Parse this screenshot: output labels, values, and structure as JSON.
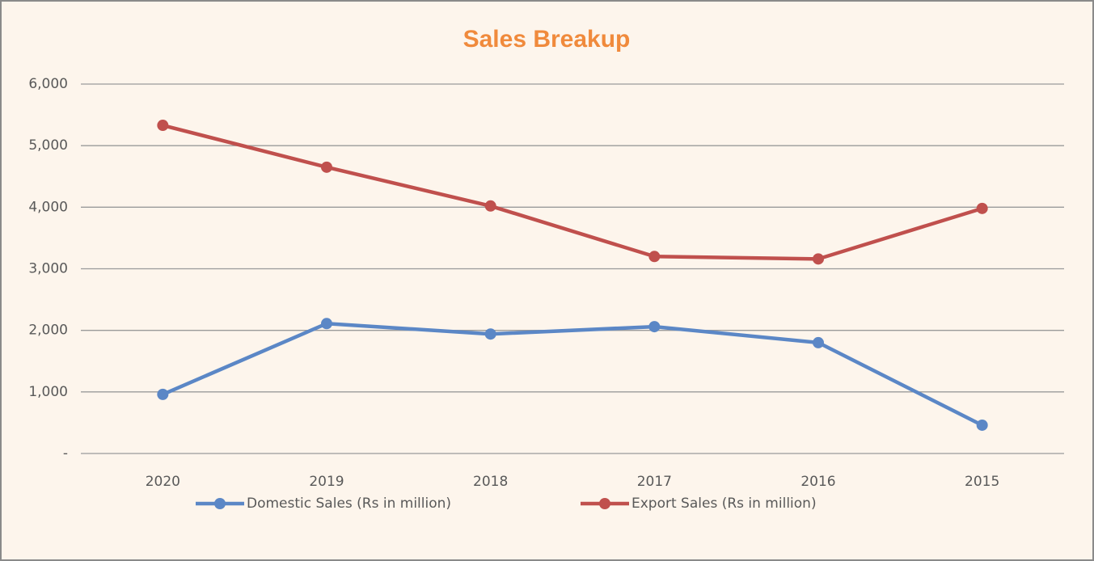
{
  "chart_data": {
    "type": "line",
    "title": "Sales Breakup",
    "categories": [
      "2020",
      "2019",
      "2018",
      "2017",
      "2016",
      "2015"
    ],
    "series": [
      {
        "name": "Domestic Sales (Rs in million)",
        "color": "#5b87c6",
        "values": [
          960,
          2110,
          1940,
          2060,
          1800,
          460
        ]
      },
      {
        "name": "Export Sales (Rs in million)",
        "color": "#c0504d",
        "values": [
          5330,
          4650,
          4020,
          3200,
          3160,
          3980
        ]
      }
    ],
    "ylim": [
      0,
      6000
    ],
    "yticks": [
      {
        "value": 0,
        "label": "-"
      },
      {
        "value": 1000,
        "label": "1,000"
      },
      {
        "value": 2000,
        "label": "2,000"
      },
      {
        "value": 3000,
        "label": "3,000"
      },
      {
        "value": 4000,
        "label": "4,000"
      },
      {
        "value": 5000,
        "label": "5,000"
      },
      {
        "value": 6000,
        "label": "6,000"
      }
    ],
    "grid": true,
    "legend": "bottom"
  }
}
